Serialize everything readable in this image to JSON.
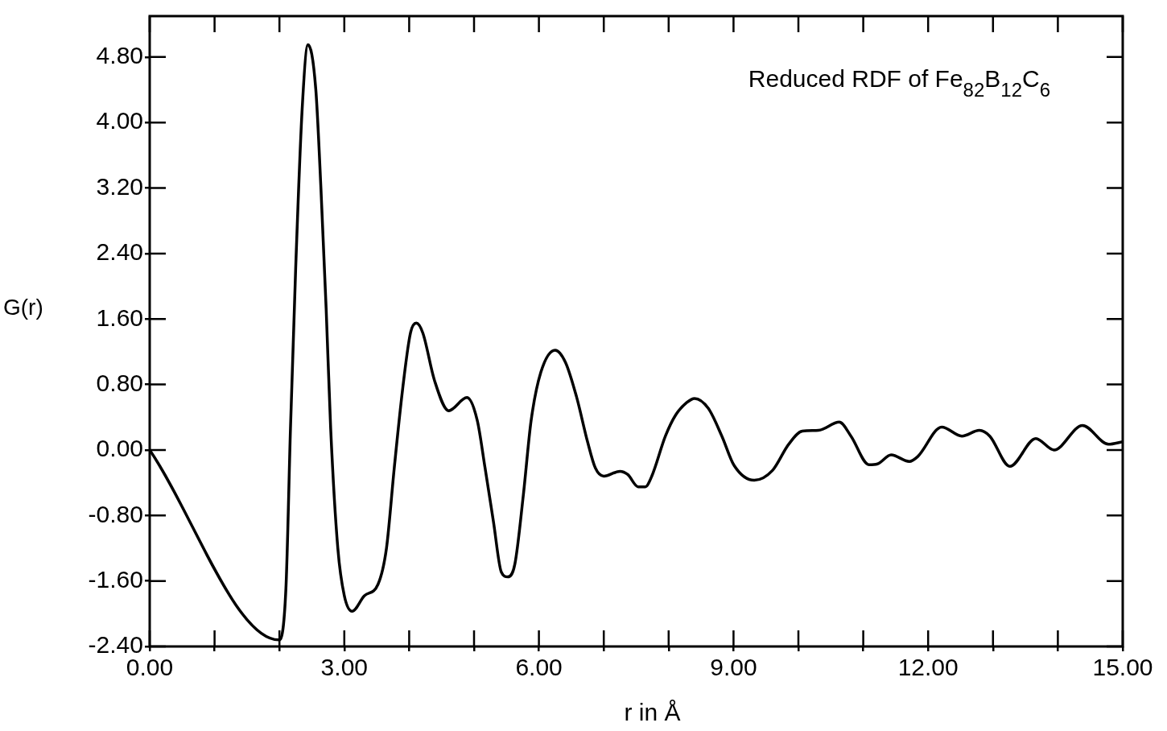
{
  "chart_data": {
    "type": "line",
    "title": "Reduced RDF of Fe$_{82}$B$_{12}$C$_{6}$",
    "xlabel": "r in Å",
    "ylabel": "G(r)",
    "xlim": [
      0,
      15
    ],
    "ylim": [
      -2.4,
      5.3
    ],
    "xticks": [
      {
        "value": 0,
        "label": "0.00"
      },
      {
        "value": 1,
        "label": null
      },
      {
        "value": 2,
        "label": null
      },
      {
        "value": 3,
        "label": "3.00"
      },
      {
        "value": 4,
        "label": null
      },
      {
        "value": 5,
        "label": null
      },
      {
        "value": 6,
        "label": "6.00"
      },
      {
        "value": 7,
        "label": null
      },
      {
        "value": 8,
        "label": null
      },
      {
        "value": 9,
        "label": "9.00"
      },
      {
        "value": 10,
        "label": null
      },
      {
        "value": 11,
        "label": null
      },
      {
        "value": 12,
        "label": "12.00"
      },
      {
        "value": 13,
        "label": null
      },
      {
        "value": 14,
        "label": null
      },
      {
        "value": 15,
        "label": "15.00"
      }
    ],
    "yticks": [
      {
        "value": -2.4,
        "label": "-2.40"
      },
      {
        "value": -1.6,
        "label": "-1.60"
      },
      {
        "value": -0.8,
        "label": "-0.80"
      },
      {
        "value": 0,
        "label": "0.00"
      },
      {
        "value": 0.8,
        "label": "0.80"
      },
      {
        "value": 1.6,
        "label": "1.60"
      },
      {
        "value": 2.4,
        "label": "2.40"
      },
      {
        "value": 3.2,
        "label": "3.20"
      },
      {
        "value": 4,
        "label": "4.00"
      },
      {
        "value": 4.8,
        "label": "4.80"
      }
    ],
    "grid": false,
    "legend": false,
    "marker": "none",
    "line_style": "solid",
    "series": [
      {
        "color": "#000000",
        "x": [
          0,
          1.99,
          2.1,
          2.17,
          2.25,
          2.35,
          2.44,
          2.56,
          2.64,
          2.72,
          2.79,
          2.9,
          3.0,
          3.12,
          3.31,
          3.52,
          3.65,
          3.77,
          3.9,
          4.02,
          4.11,
          4.21,
          4.39,
          4.61,
          4.89,
          5.05,
          5.17,
          5.3,
          5.42,
          5.52,
          5.63,
          5.76,
          5.88,
          6.03,
          6.25,
          6.41,
          6.58,
          6.75,
          6.87,
          7.0,
          7.25,
          7.37,
          7.53,
          7.64,
          7.74,
          7.95,
          8.11,
          8.28,
          8.4,
          8.61,
          8.82,
          9.01,
          9.32,
          9.6,
          9.85,
          10.06,
          10.31,
          10.63,
          10.81,
          11.09,
          11.22,
          11.43,
          11.71,
          11.84,
          12.21,
          12.52,
          12.79,
          12.95,
          13.26,
          13.66,
          13.94,
          14.38,
          14.78,
          15
        ],
        "values": [
          0,
          -2.32,
          -1.69,
          0.26,
          2.21,
          4.16,
          4.95,
          4.41,
          3.19,
          1.73,
          0.26,
          -1.2,
          -1.78,
          -1.97,
          -1.78,
          -1.64,
          -1.2,
          -0.22,
          0.75,
          1.43,
          1.55,
          1.43,
          0.85,
          0.48,
          0.64,
          0.36,
          -0.22,
          -0.88,
          -1.49,
          -1.55,
          -1.39,
          -0.55,
          0.36,
          0.95,
          1.22,
          1.07,
          0.65,
          0.1,
          -0.22,
          -0.32,
          -0.26,
          -0.3,
          -0.45,
          -0.45,
          -0.32,
          0.17,
          0.43,
          0.58,
          0.63,
          0.51,
          0.17,
          -0.19,
          -0.37,
          -0.25,
          0.07,
          0.23,
          0.24,
          0.34,
          0.17,
          -0.18,
          -0.17,
          -0.06,
          -0.14,
          -0.08,
          0.28,
          0.17,
          0.24,
          0.17,
          -0.2,
          0.14,
          0,
          0.3,
          0.07,
          0.1
        ]
      }
    ]
  }
}
